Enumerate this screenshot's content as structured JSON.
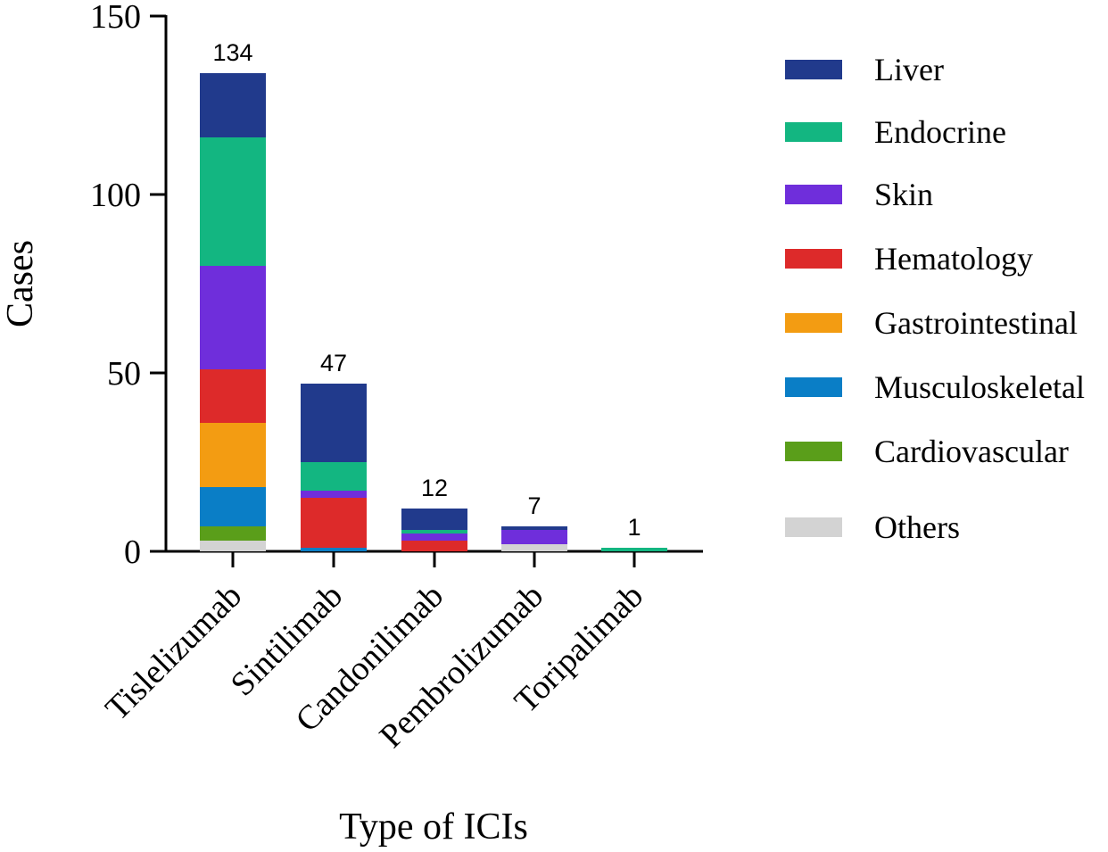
{
  "chart_data": {
    "type": "bar",
    "stacked": true,
    "title": "",
    "xlabel": "Type of ICIs",
    "ylabel": "Cases",
    "ylim": [
      0,
      150
    ],
    "yticks": [
      0,
      50,
      100,
      150
    ],
    "categories": [
      "Tislelizumab",
      "Sintilimab",
      "Candonilimab",
      "Pembrolizumab",
      "Toripalimab"
    ],
    "totals": [
      134,
      47,
      12,
      7,
      1
    ],
    "legend_position": "right",
    "series": [
      {
        "name": "Others",
        "color": "#d3d3d3",
        "values": [
          3,
          0,
          0,
          2,
          0
        ]
      },
      {
        "name": "Cardiovascular",
        "color": "#5a9e1a",
        "values": [
          4,
          0,
          0,
          0,
          0
        ]
      },
      {
        "name": "Musculoskeletal",
        "color": "#0a7ec6",
        "values": [
          11,
          1,
          0,
          0,
          0
        ]
      },
      {
        "name": "Gastrointestinal",
        "color": "#f39c12",
        "values": [
          18,
          0,
          0,
          0,
          0
        ]
      },
      {
        "name": "Hematology",
        "color": "#dd2a2a",
        "values": [
          15,
          14,
          3,
          0,
          0
        ]
      },
      {
        "name": "Skin",
        "color": "#6f2edb",
        "values": [
          29,
          2,
          2,
          4,
          0
        ]
      },
      {
        "name": "Endocrine",
        "color": "#13b681",
        "values": [
          36,
          8,
          1,
          0,
          1
        ]
      },
      {
        "name": "Liver",
        "color": "#213a8c",
        "values": [
          18,
          22,
          6,
          1,
          0
        ]
      }
    ],
    "legend_order": [
      "Liver",
      "Endocrine",
      "Skin",
      "Hematology",
      "Gastrointestinal",
      "Musculoskeletal",
      "Cardiovascular",
      "Others"
    ]
  }
}
